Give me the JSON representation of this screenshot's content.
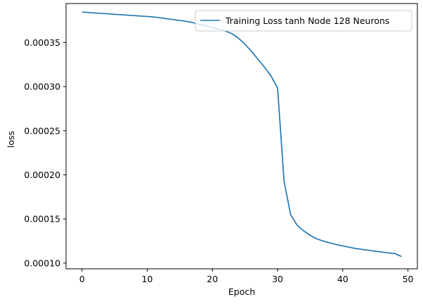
{
  "chart_data": {
    "type": "line",
    "xlabel": "Epoch",
    "ylabel": "loss",
    "xlim": [
      -2.45,
      51.45
    ],
    "ylim": [
      9.35e-05,
      0.0003942
    ],
    "xticks": [
      0,
      10,
      20,
      30,
      40,
      50
    ],
    "xtick_labels": [
      "0",
      "10",
      "20",
      "30",
      "40",
      "50"
    ],
    "yticks": [
      0.0001,
      0.00015,
      0.0002,
      0.00025,
      0.0003,
      0.00035
    ],
    "ytick_labels": [
      "0.00010",
      "0.00015",
      "0.00020",
      "0.00025",
      "0.00030",
      "0.00035"
    ],
    "grid": false,
    "legend": "top-right",
    "series": [
      {
        "name": "Training Loss tanh Node 128 Neurons",
        "color": "#1f77b4",
        "x": [
          0,
          1,
          2,
          3,
          4,
          5,
          6,
          7,
          8,
          9,
          10,
          11,
          12,
          13,
          14,
          15,
          16,
          17,
          18,
          19,
          20,
          21,
          22,
          23,
          24,
          25,
          26,
          27,
          28,
          29,
          30,
          31,
          32,
          33,
          34,
          35,
          36,
          37,
          38,
          39,
          40,
          41,
          42,
          43,
          44,
          45,
          46,
          47,
          48,
          49
        ],
        "y": [
          0.0003845,
          0.000384,
          0.0003835,
          0.000383,
          0.0003825,
          0.000382,
          0.0003815,
          0.000381,
          0.0003805,
          0.00038,
          0.0003795,
          0.000379,
          0.000378,
          0.000377,
          0.000376,
          0.000375,
          0.000374,
          0.0003725,
          0.0003705,
          0.000369,
          0.000367,
          0.0003648,
          0.000363,
          0.00036,
          0.000355,
          0.000348,
          0.00034,
          0.000331,
          0.000322,
          0.000312,
          0.0002985,
          0.0001925,
          0.000155,
          0.000143,
          0.0001365,
          0.0001315,
          0.0001275,
          0.000125,
          0.000123,
          0.000121,
          0.0001195,
          0.000118,
          0.0001165,
          0.0001155,
          0.0001145,
          0.0001135,
          0.0001125,
          0.0001115,
          0.0001108,
          0.0001075
        ]
      }
    ]
  }
}
